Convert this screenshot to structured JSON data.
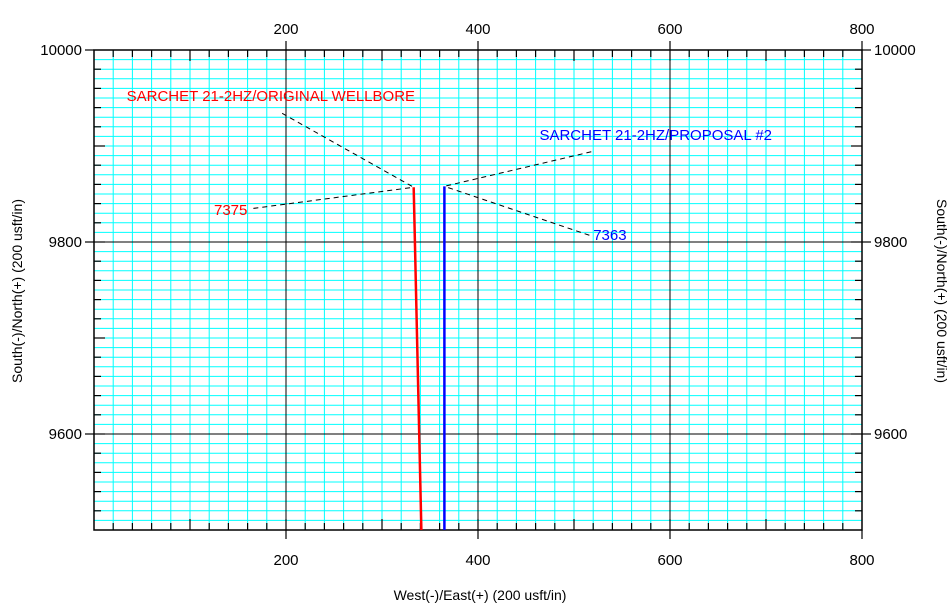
{
  "chart_data": {
    "type": "line",
    "title": "",
    "xlabel": "West(-)/East(+) (200 usft/in)",
    "ylabel_left": "South(-)/North(+) (200 usft/in)",
    "ylabel_right": "South(-)/North(+) (200 usft/in)",
    "xlim": [
      0,
      800
    ],
    "ylim": [
      9500,
      10000
    ],
    "x_ticks": [
      200,
      400,
      600,
      800
    ],
    "x_tick_labels": [
      "200",
      "400",
      "600",
      "800"
    ],
    "y_ticks": [
      9600,
      9800,
      10000
    ],
    "y_tick_labels": [
      "9600",
      "9800",
      "10000"
    ],
    "grid": true,
    "colors": {
      "minor_grid": "#00FFFF",
      "major_grid": "#000000",
      "series_red": "#FF0000",
      "series_blue": "#0000FF"
    },
    "series": [
      {
        "name": "SARCHET 21-2HZ/ORIGINAL WELLBORE",
        "color": "#FF0000",
        "x": [
          333,
          341
        ],
        "y": [
          9857,
          9500
        ]
      },
      {
        "name": "SARCHET 21-2HZ/PROPOSAL #2",
        "color": "#0000FF",
        "x": [
          365,
          365
        ],
        "y": [
          9858,
          9500
        ]
      }
    ],
    "annotations": [
      {
        "text": "SARCHET 21-2HZ/ORIGINAL WELLBORE",
        "color": "#FF0000",
        "label_x": 34,
        "label_y": 9947,
        "leader_from": [
          196,
          9934
        ],
        "leader_to": [
          333,
          9857
        ]
      },
      {
        "text": "7375",
        "color": "#FF0000",
        "label_x": 125,
        "label_y": 9828,
        "leader_from": [
          166,
          9835
        ],
        "leader_to": [
          333,
          9857
        ]
      },
      {
        "text": "SARCHET 21-2HZ/PROPOSAL #2",
        "color": "#0000FF",
        "label_x": 464,
        "label_y": 9906,
        "leader_from": [
          518,
          9894
        ],
        "leader_to": [
          365,
          9858
        ]
      },
      {
        "text": "7363",
        "color": "#0000FF",
        "label_x": 520,
        "label_y": 9802,
        "leader_from": [
          516,
          9807
        ],
        "leader_to": [
          365,
          9858
        ]
      }
    ]
  }
}
